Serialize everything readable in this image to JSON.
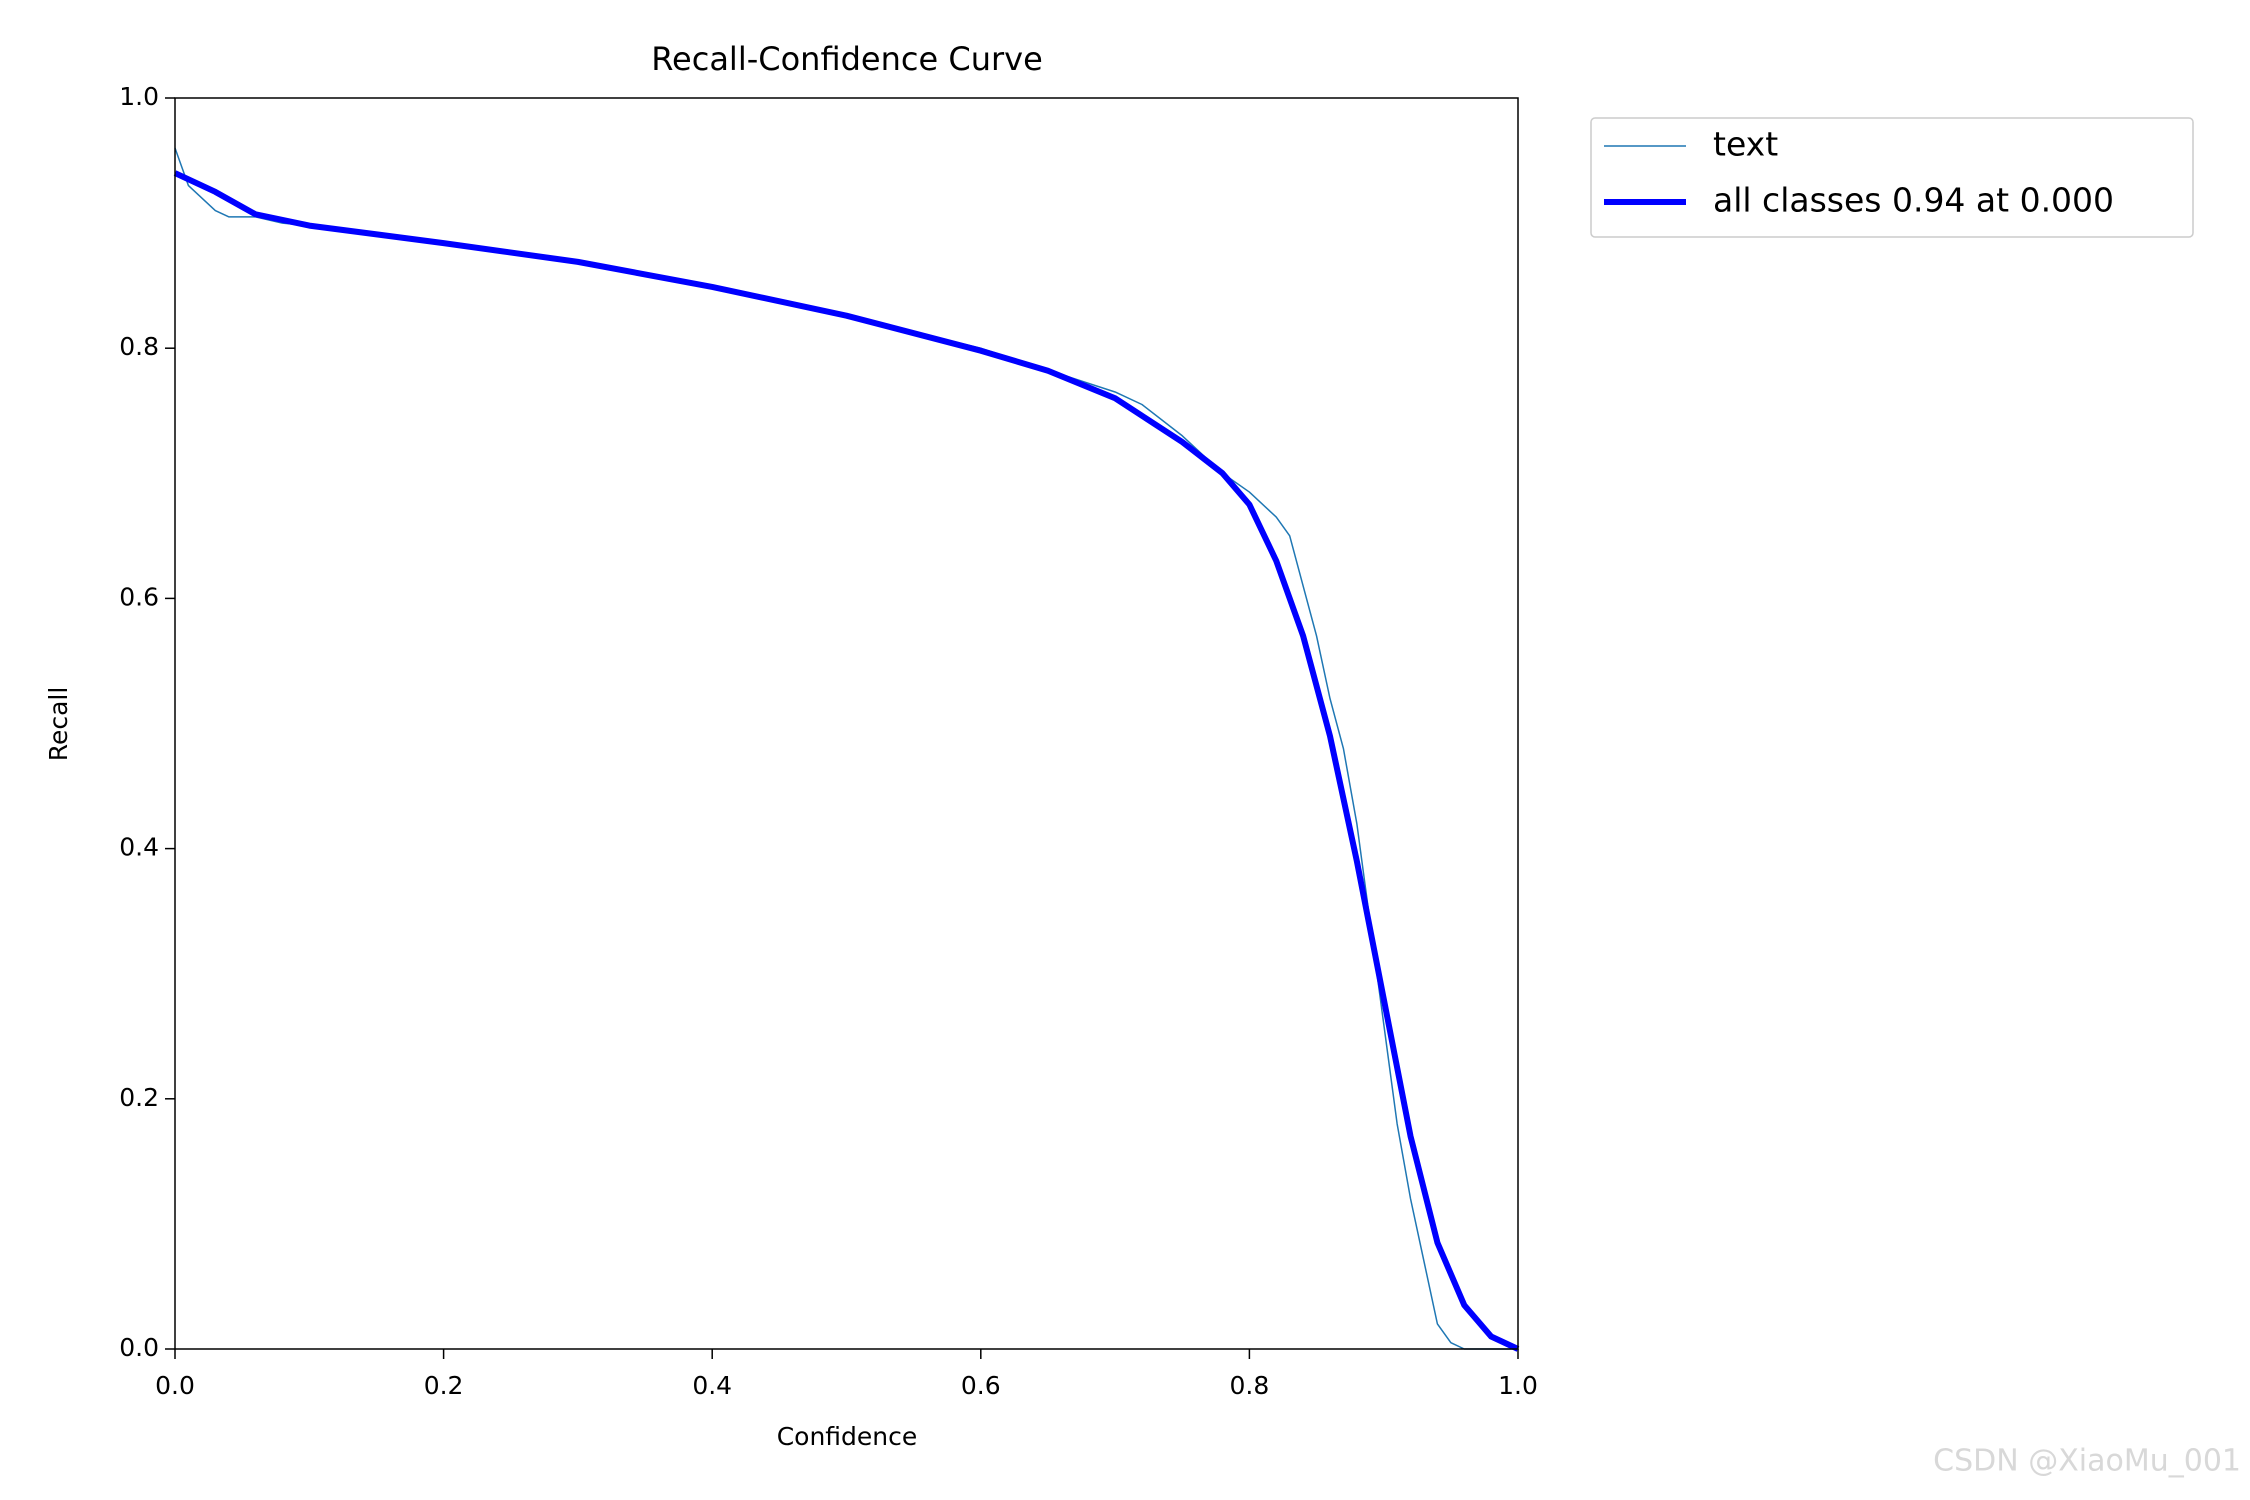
{
  "chart_data": {
    "type": "line",
    "title": "Recall-Confidence Curve",
    "x_label": "Confidence",
    "y_label": "Recall",
    "xlim": [
      0,
      1
    ],
    "ylim": [
      0,
      1
    ],
    "xticks": [
      {
        "value": 0,
        "label": "0.0"
      },
      0.2,
      0.4,
      0.6,
      0.8,
      {
        "value": 1,
        "label": "1.0"
      }
    ],
    "yticks": [
      {
        "value": 0,
        "label": "0.0"
      },
      0.2,
      0.4,
      0.6,
      0.8,
      {
        "value": 1,
        "label": "1.0"
      }
    ],
    "grid": false,
    "legend": "outside-upper-right",
    "series": [
      {
        "name": "text",
        "color": "#1f77b4",
        "width": 1.5,
        "x": [
          0,
          0.01,
          0.02,
          0.03,
          0.04,
          0.05,
          0.06,
          0.08,
          0.1,
          0.2,
          0.3,
          0.4,
          0.5,
          0.6,
          0.7,
          0.72,
          0.75,
          0.78,
          0.8,
          0.82,
          0.83,
          0.84,
          0.85,
          0.86,
          0.87,
          0.88,
          0.89,
          0.9,
          0.91,
          0.92,
          0.93,
          0.94,
          0.95,
          0.96,
          1.0
        ],
        "values": [
          0.96,
          0.93,
          0.92,
          0.91,
          0.905,
          0.905,
          0.905,
          0.9,
          0.898,
          0.885,
          0.87,
          0.85,
          0.826,
          0.8,
          0.765,
          0.755,
          0.73,
          0.7,
          0.685,
          0.665,
          0.65,
          0.61,
          0.57,
          0.52,
          0.48,
          0.42,
          0.34,
          0.26,
          0.18,
          0.12,
          0.07,
          0.02,
          0.005,
          0,
          0
        ]
      },
      {
        "name": "all classes 0.94 at 0.000",
        "color": "#0000ff",
        "width": 6,
        "x": [
          0,
          0.03,
          0.06,
          0.1,
          0.2,
          0.3,
          0.4,
          0.5,
          0.6,
          0.65,
          0.7,
          0.75,
          0.78,
          0.8,
          0.82,
          0.84,
          0.86,
          0.88,
          0.9,
          0.92,
          0.94,
          0.96,
          0.98,
          1.0
        ],
        "values": [
          0.94,
          0.925,
          0.907,
          0.898,
          0.884,
          0.869,
          0.849,
          0.826,
          0.798,
          0.782,
          0.76,
          0.725,
          0.7,
          0.675,
          0.63,
          0.57,
          0.49,
          0.39,
          0.28,
          0.17,
          0.085,
          0.035,
          0.01,
          0
        ]
      }
    ]
  },
  "watermark": "CSDN @XiaoMu_001"
}
